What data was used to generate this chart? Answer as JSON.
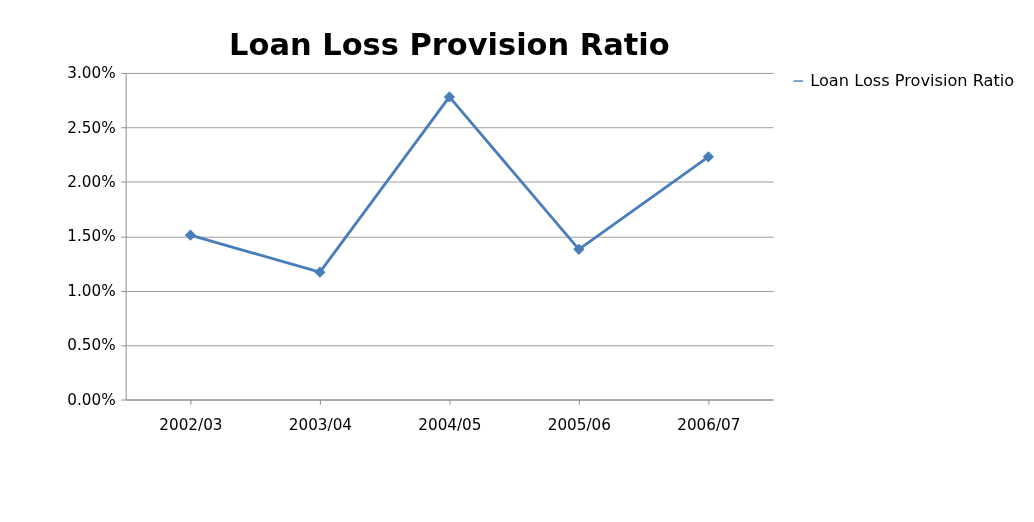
{
  "chart_data": {
    "type": "line",
    "title": "Loan Loss Provision Ratio",
    "categories": [
      "2002/03",
      "2003/04",
      "2004/05",
      "2005/06",
      "2006/07"
    ],
    "series": [
      {
        "name": "Loan Loss Provision Ratio",
        "color": "#4a7ebb",
        "values": [
          1.51,
          1.17,
          2.78,
          1.38,
          2.23
        ]
      }
    ],
    "ylim": [
      0,
      3
    ],
    "yticks": [
      {
        "value": 0,
        "label": "0.00%"
      },
      {
        "value": 0.5,
        "label": "0.50%"
      },
      {
        "value": 1,
        "label": "1.00%"
      },
      {
        "value": 1.5,
        "label": "1.50%"
      },
      {
        "value": 2,
        "label": "2.00%"
      },
      {
        "value": 2.5,
        "label": "2.50%"
      },
      {
        "value": 3,
        "label": "3.00%"
      }
    ],
    "grid": "y",
    "legend": "right",
    "marker": "diamond",
    "line_style": "solid"
  }
}
